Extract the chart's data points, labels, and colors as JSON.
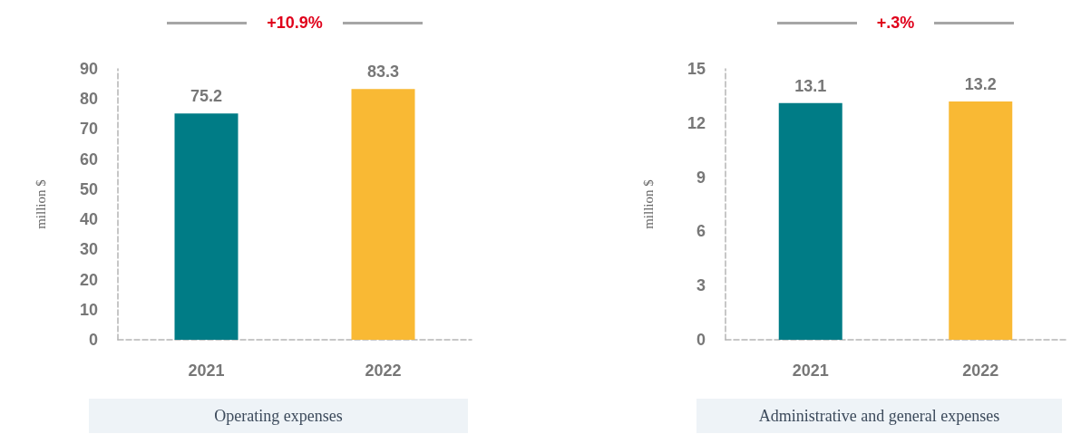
{
  "chart_data": [
    {
      "type": "bar",
      "title": "+10.9%",
      "xlabel": "Operating expenses",
      "ylabel": "million $",
      "categories": [
        "2021",
        "2022"
      ],
      "values": [
        75.2,
        83.3
      ],
      "colors": [
        "#007c86",
        "#f9b934"
      ],
      "ylim": [
        0,
        90
      ],
      "yticks": [
        0,
        10,
        20,
        30,
        40,
        50,
        60,
        70,
        80,
        90
      ],
      "grid": false,
      "data_labels": true
    },
    {
      "type": "bar",
      "title": "+.3%",
      "xlabel": "Administrative and general expenses",
      "ylabel": "million $",
      "categories": [
        "2021",
        "2022"
      ],
      "values": [
        13.1,
        13.2
      ],
      "colors": [
        "#007c86",
        "#f9b934"
      ],
      "ylim": [
        0,
        15
      ],
      "yticks": [
        0,
        3,
        6,
        9,
        12,
        15
      ],
      "grid": false,
      "data_labels": true
    }
  ]
}
